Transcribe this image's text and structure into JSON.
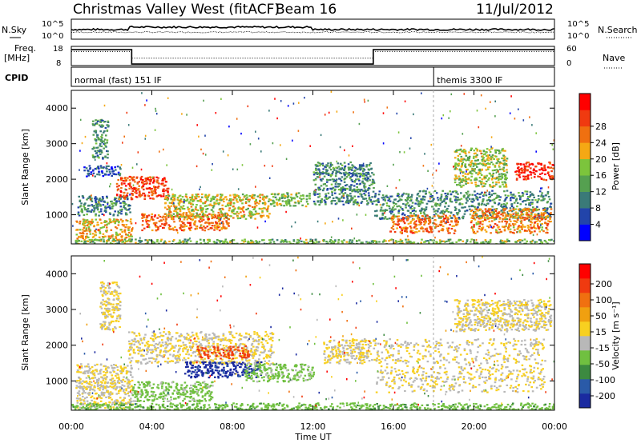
{
  "header": {
    "title": "Christmas Valley West (fitACF)",
    "beam": "Beam 16",
    "date": "11/Jul/2012"
  },
  "summary_panel": {
    "nsky_label": "N.Sky",
    "nsearch_label": "N.Search",
    "noise_ticks": [
      "10^5",
      "10^0"
    ],
    "freq_label": "Freq.",
    "freq_unit": "[MHz]",
    "freq_ticks": [
      "18",
      "8"
    ],
    "nave_label": "Nave",
    "nave_ticks": [
      "60",
      "0"
    ],
    "cpid_label": "CPID",
    "cpid_modes": [
      {
        "label": "normal (fast) 151 IF",
        "start_hour": 0,
        "end_hour": 18
      },
      {
        "label": "themis 3300 IF",
        "start_hour": 18,
        "end_hour": 24
      }
    ],
    "frequency_steps_mhz": [
      {
        "start_hour": 0,
        "end_hour": 3,
        "value": 16.3
      },
      {
        "start_hour": 3,
        "end_hour": 15,
        "value": 8.8
      },
      {
        "start_hour": 15,
        "end_hour": 24,
        "value": 16.3
      }
    ],
    "nave_steps": [
      {
        "start_hour": 0,
        "end_hour": 3,
        "value": 44
      },
      {
        "start_hour": 3,
        "end_hour": 15,
        "value": 23
      },
      {
        "start_hour": 15,
        "end_hour": 24,
        "value": 44
      }
    ]
  },
  "chart_data": [
    {
      "type": "heatmap",
      "panel": "power",
      "ylabel": "Slant Range [km]",
      "xlabel": "",
      "ylim": [
        180,
        4500
      ],
      "xlim_hours": [
        0,
        24
      ],
      "yticks": [
        1000,
        2000,
        3000,
        4000
      ],
      "colorbar": {
        "label": "Power [dB]",
        "ticks": [
          "4",
          "8",
          "12",
          "16",
          "20",
          "24",
          "28"
        ],
        "range": [
          0,
          32
        ],
        "colors": [
          "#0000ff",
          "#2244aa",
          "#3a7a78",
          "#55a050",
          "#7cc43c",
          "#f5a814",
          "#f07010",
          "#f03a10",
          "#ff0000"
        ]
      },
      "echo_regions": [
        {
          "x": [
            0.2,
            3.0
          ],
          "y": [
            260,
            900
          ],
          "value": 20
        },
        {
          "x": [
            0.3,
            2.9
          ],
          "y": [
            1000,
            1550
          ],
          "value": 10
        },
        {
          "x": [
            0.6,
            2.4
          ],
          "y": [
            2100,
            2400
          ],
          "value": 6
        },
        {
          "x": [
            1.0,
            1.8
          ],
          "y": [
            2600,
            3700
          ],
          "value": 10
        },
        {
          "x": [
            2.2,
            4.8
          ],
          "y": [
            1450,
            2100
          ],
          "value": 26
        },
        {
          "x": [
            3.4,
            7.8
          ],
          "y": [
            580,
            1050
          ],
          "value": 24
        },
        {
          "x": [
            4.6,
            9.8
          ],
          "y": [
            900,
            1600
          ],
          "value": 18
        },
        {
          "x": [
            9.8,
            11.8
          ],
          "y": [
            1250,
            1650
          ],
          "value": 15
        },
        {
          "x": [
            12.0,
            15.0
          ],
          "y": [
            1300,
            2500
          ],
          "value": 10
        },
        {
          "x": [
            15.0,
            23.8
          ],
          "y": [
            900,
            1700
          ],
          "value": 10
        },
        {
          "x": [
            15.8,
            19.2
          ],
          "y": [
            500,
            1000
          ],
          "value": 24
        },
        {
          "x": [
            19.8,
            23.8
          ],
          "y": [
            500,
            1200
          ],
          "value": 22
        },
        {
          "x": [
            19.0,
            21.6
          ],
          "y": [
            1800,
            2900
          ],
          "value": 16
        },
        {
          "x": [
            22.0,
            23.9
          ],
          "y": [
            2000,
            2500
          ],
          "value": 28
        },
        {
          "x": [
            0.0,
            24.0
          ],
          "y": [
            180,
            330
          ],
          "value": 14
        }
      ]
    },
    {
      "type": "heatmap",
      "panel": "velocity",
      "ylabel": "Slant Range [km]",
      "xlabel": "Time UT",
      "ylim": [
        180,
        4500
      ],
      "xlim_hours": [
        0,
        24
      ],
      "yticks": [
        1000,
        2000,
        3000,
        4000
      ],
      "xticks": [
        "00:00",
        "04:00",
        "08:00",
        "12:00",
        "16:00",
        "20:00",
        "00:00"
      ],
      "colorbar": {
        "label": "Velocity [m s⁻¹]",
        "ticks": [
          "200",
          "100",
          "50",
          "15",
          "-15",
          "-50",
          "-100",
          "-200"
        ],
        "range": [
          -250,
          250
        ],
        "colors": [
          "#1a2aa0",
          "#2a5aa8",
          "#3c8a40",
          "#70c040",
          "#b8b8b8",
          "#f8d020",
          "#f0a010",
          "#f07010",
          "#f03a10",
          "#ff0000"
        ]
      },
      "echo_regions": [
        {
          "x": [
            0.2,
            3.0
          ],
          "y": [
            260,
            1500
          ],
          "value": 0
        },
        {
          "x": [
            1.4,
            2.4
          ],
          "y": [
            2400,
            3800
          ],
          "value": 0
        },
        {
          "x": [
            2.8,
            10.0
          ],
          "y": [
            1500,
            2400
          ],
          "value": 0
        },
        {
          "x": [
            3.0,
            7.0
          ],
          "y": [
            450,
            1000
          ],
          "value": -70
        },
        {
          "x": [
            5.6,
            9.4
          ],
          "y": [
            1100,
            1550
          ],
          "value": -220
        },
        {
          "x": [
            8.6,
            12.0
          ],
          "y": [
            1000,
            1500
          ],
          "value": -70
        },
        {
          "x": [
            6.2,
            8.8
          ],
          "y": [
            1650,
            2000
          ],
          "value": 160
        },
        {
          "x": [
            12.5,
            15.0
          ],
          "y": [
            1500,
            2200
          ],
          "value": 0
        },
        {
          "x": [
            15.0,
            23.5
          ],
          "y": [
            700,
            2200
          ],
          "value": 0
        },
        {
          "x": [
            19.0,
            23.8
          ],
          "y": [
            2400,
            3300
          ],
          "value": 0
        },
        {
          "x": [
            0.0,
            24.0
          ],
          "y": [
            180,
            400
          ],
          "value": -80
        }
      ]
    }
  ]
}
